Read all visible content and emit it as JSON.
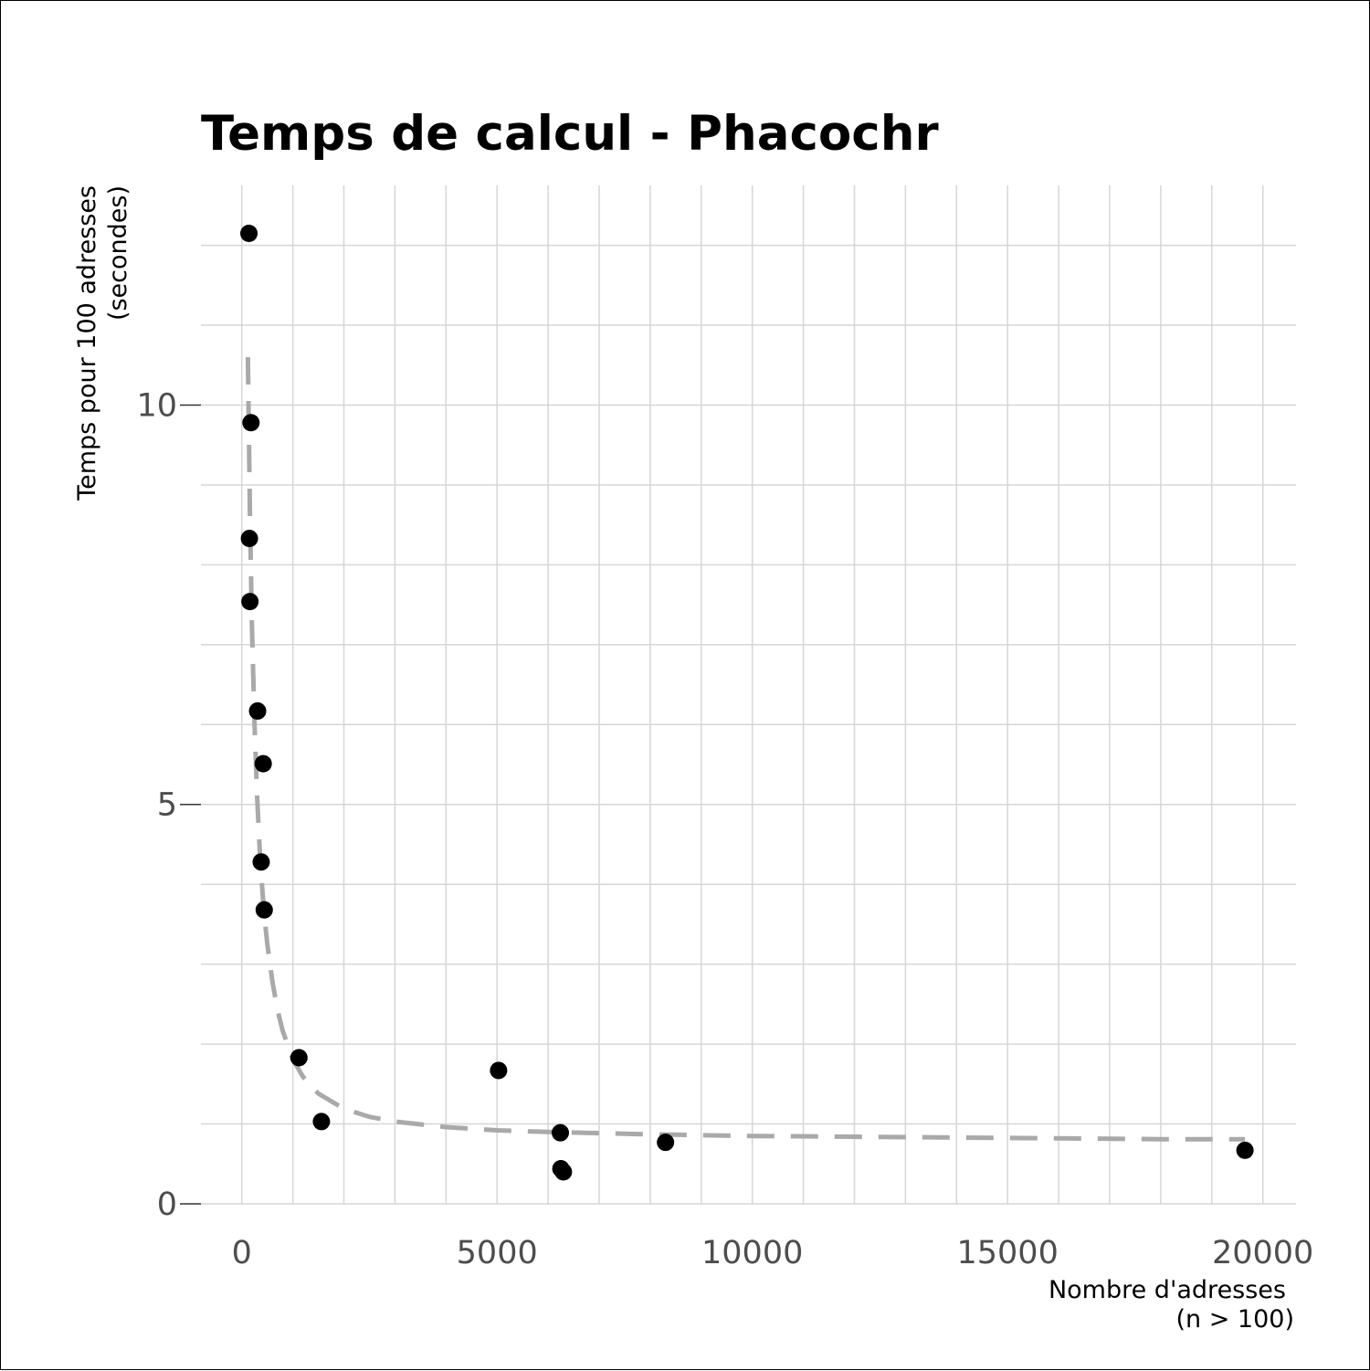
{
  "chart_data": {
    "type": "scatter",
    "title": "Temps de calcul - Phacochr",
    "xlabel": [
      "Nombre d'adresses",
      "(n > 100)"
    ],
    "ylabel": [
      "Temps pour 100 adresses",
      "(secondes)"
    ],
    "xlim": [
      -800,
      20650
    ],
    "ylim": [
      0,
      12.75
    ],
    "x_ticks": [
      0,
      5000,
      10000,
      15000,
      20000
    ],
    "x_tick_labels": [
      "0",
      "5000",
      "10000",
      "15000",
      "20000"
    ],
    "y_ticks": [
      0,
      5,
      10
    ],
    "y_tick_labels": [
      "0",
      "5",
      "10"
    ],
    "x_minor_step": 1000,
    "y_minor_step": 1,
    "grid": true,
    "points": {
      "x": [
        140,
        180,
        150,
        160,
        310,
        420,
        380,
        440,
        1120,
        1560,
        5030,
        6240,
        6250,
        6300,
        8300,
        19650
      ],
      "y": [
        12.15,
        9.78,
        8.33,
        7.54,
        6.17,
        5.51,
        4.28,
        3.68,
        1.83,
        1.03,
        1.67,
        0.89,
        0.44,
        0.4,
        0.77,
        0.67
      ],
      "color": "#000000"
    },
    "trend": {
      "style": "dashed",
      "color": "#a9a9a9",
      "x": [
        120,
        160,
        200,
        250,
        300,
        350,
        400,
        450,
        500,
        600,
        700,
        800,
        1000,
        1200,
        1500,
        2000,
        2500,
        3000,
        4000,
        5000,
        6000,
        8000,
        10000,
        12000,
        14000,
        16000,
        18000,
        19650
      ],
      "y": [
        10.6,
        8.6,
        7.2,
        6.0,
        5.1,
        4.45,
        3.95,
        3.55,
        3.25,
        2.78,
        2.43,
        2.17,
        1.81,
        1.59,
        1.38,
        1.19,
        1.09,
        1.03,
        0.96,
        0.92,
        0.9,
        0.87,
        0.85,
        0.84,
        0.83,
        0.82,
        0.81,
        0.81
      ]
    }
  }
}
